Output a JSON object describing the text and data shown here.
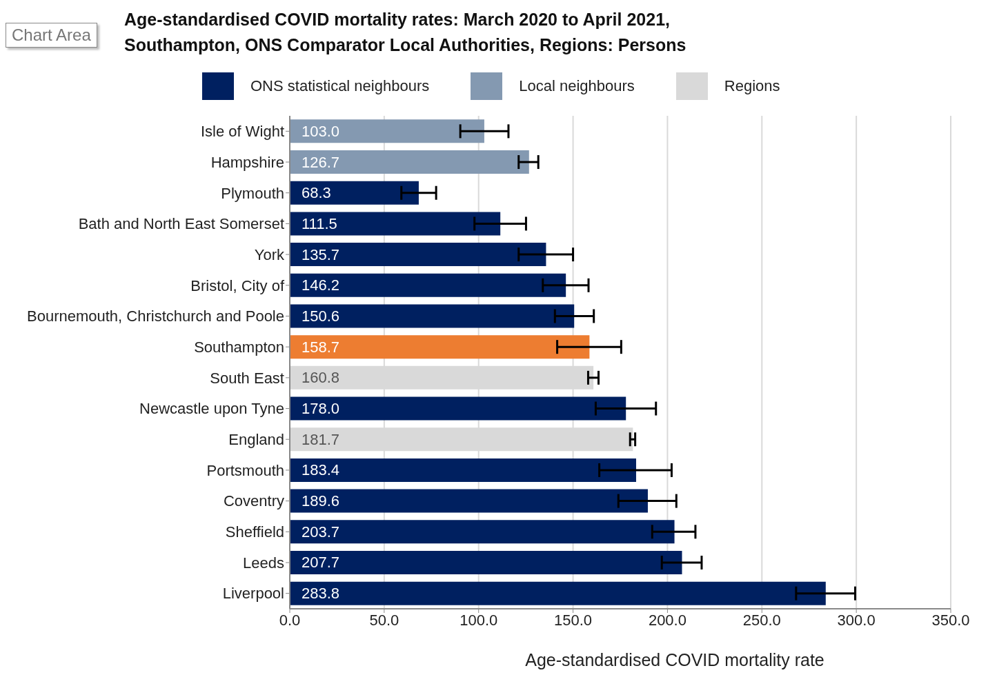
{
  "chart_data": {
    "type": "bar",
    "orientation": "horizontal",
    "stacked": true,
    "title": "Age-standardised COVID mortality rates: March 2020 to April 2021,\nSouthampton, ONS Comparator Local Authorities, Regions: Persons",
    "xlabel": "Age-standardised COVID mortality rate",
    "annotations": [
      "Chart Area"
    ],
    "categories": [
      "Isle of Wight",
      "Hampshire",
      "Plymouth",
      "Bath and North East Somerset",
      "York",
      "Bristol, City of",
      "Bournemouth, Christchurch and Poole",
      "Southampton",
      "South East",
      "Newcastle upon Tyne",
      "England",
      "Portsmouth",
      "Coventry",
      "Sheffield",
      "Leeds",
      "Liverpool"
    ],
    "series": [
      {
        "name": "ONS statistical neighbours",
        "color": "#002060",
        "values": [
          null,
          null,
          68.3,
          111.5,
          135.7,
          146.2,
          150.6,
          null,
          null,
          178.0,
          null,
          183.4,
          189.6,
          203.7,
          207.7,
          283.8
        ],
        "value_labels": [
          null,
          null,
          "68.3",
          "111.5",
          "135.7",
          "146.2",
          "150.6",
          null,
          null,
          "178.0",
          null,
          "183.4",
          "189.6",
          "203.7",
          "207.7",
          "283.8"
        ],
        "errors": [
          null,
          null,
          [
            59.1,
            77.5
          ],
          [
            97.8,
            125.1
          ],
          [
            121.2,
            150.0
          ],
          [
            134.0,
            158.2
          ],
          [
            140.4,
            161.0
          ],
          null,
          null,
          [
            162.0,
            193.9
          ],
          null,
          [
            163.9,
            202.2
          ],
          [
            174.0,
            204.7
          ],
          [
            191.9,
            214.8
          ],
          [
            197.0,
            218.1
          ],
          [
            268.1,
            299.4
          ]
        ]
      },
      {
        "name": "Local neighbours",
        "color": "#8499b1",
        "values": [
          103.0,
          126.7,
          null,
          null,
          null,
          null,
          null,
          null,
          null,
          null,
          null,
          null,
          null,
          null,
          null,
          null
        ],
        "value_labels": [
          "103.0",
          "126.7",
          null,
          null,
          null,
          null,
          null,
          null,
          null,
          null,
          null,
          null,
          null,
          null,
          null,
          null
        ],
        "errors": [
          [
            90.3,
            115.8
          ],
          [
            121.2,
            131.6
          ],
          null,
          null,
          null,
          null,
          null,
          null,
          null,
          null,
          null,
          null,
          null,
          null,
          null,
          null
        ]
      },
      {
        "name": "Regions",
        "color": "#d9d9d9",
        "values": [
          null,
          null,
          null,
          null,
          null,
          null,
          null,
          null,
          160.8,
          null,
          181.7,
          null,
          null,
          null,
          null,
          null
        ],
        "value_labels": [
          null,
          null,
          null,
          null,
          null,
          null,
          null,
          null,
          "160.8",
          null,
          "181.7",
          null,
          null,
          null,
          null,
          null
        ],
        "errors": [
          null,
          null,
          null,
          null,
          null,
          null,
          null,
          null,
          [
            158.0,
            163.5
          ],
          null,
          [
            180.2,
            182.9
          ],
          null,
          null,
          null,
          null,
          null
        ]
      },
      {
        "color": "#ed7d31",
        "values": [
          null,
          null,
          null,
          null,
          null,
          null,
          null,
          158.7,
          null,
          null,
          null,
          null,
          null,
          null,
          null,
          null
        ],
        "value_labels": [
          null,
          null,
          null,
          null,
          null,
          null,
          null,
          "158.7",
          null,
          null,
          null,
          null,
          null,
          null,
          null,
          null
        ],
        "errors": [
          null,
          null,
          null,
          null,
          null,
          null,
          null,
          [
            141.6,
            175.5
          ],
          null,
          null,
          null,
          null,
          null,
          null,
          null,
          null
        ]
      }
    ],
    "xlim": [
      0,
      350
    ],
    "xticks": [
      {
        "value": 0,
        "label": "0.0"
      },
      {
        "value": 50,
        "label": "50.0"
      },
      {
        "value": 100,
        "label": "100.0"
      },
      {
        "value": 150,
        "label": "150.0"
      },
      {
        "value": 200,
        "label": "200.0"
      },
      {
        "value": 250,
        "label": "250.0"
      },
      {
        "value": 300,
        "label": "300.0"
      },
      {
        "value": 350,
        "label": "350.0"
      }
    ],
    "grid": "x",
    "legend": "top"
  }
}
